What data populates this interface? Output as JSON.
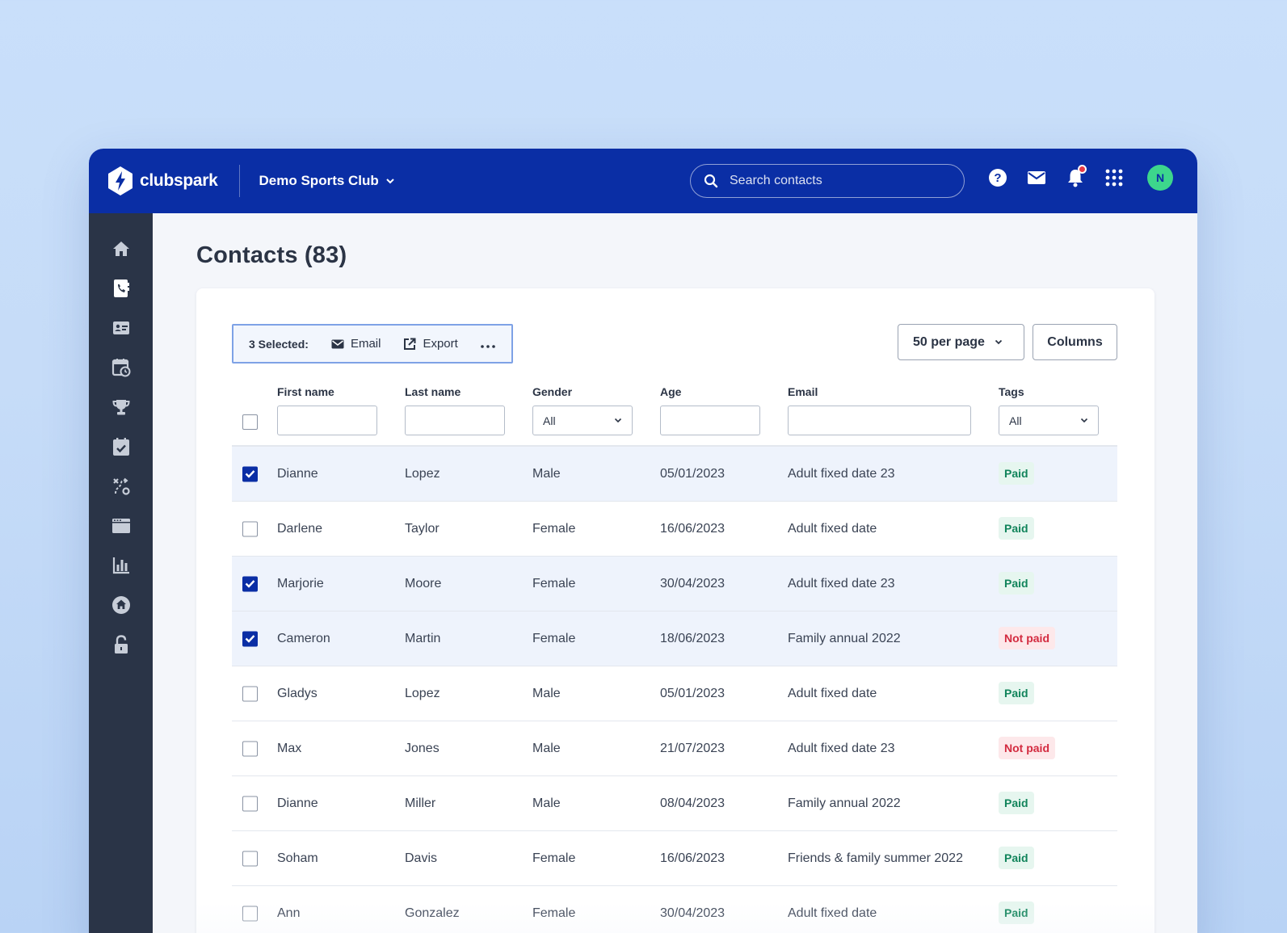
{
  "app": {
    "logo_text": "clubspark",
    "club_name": "Demo Sports Club"
  },
  "search": {
    "placeholder": "Search contacts"
  },
  "user": {
    "avatar_initial": "N"
  },
  "sidebar": {
    "items": [
      {
        "icon": "home-icon"
      },
      {
        "icon": "contacts-icon"
      },
      {
        "icon": "membership-card-icon"
      },
      {
        "icon": "calendar-clock-icon"
      },
      {
        "icon": "trophy-icon"
      },
      {
        "icon": "calendar-check-icon"
      },
      {
        "icon": "coaching-icon"
      },
      {
        "icon": "venue-icon"
      },
      {
        "icon": "reports-icon"
      },
      {
        "icon": "club-home-icon"
      },
      {
        "icon": "lock-icon"
      }
    ]
  },
  "page": {
    "title": "Contacts (83)"
  },
  "selection": {
    "count_label": "3 Selected:",
    "email_label": "Email",
    "export_label": "Export"
  },
  "toolbar": {
    "per_page_label": "50 per page",
    "columns_label": "Columns"
  },
  "table": {
    "headers": {
      "first_name": "First name",
      "last_name": "Last name",
      "gender": "Gender",
      "age": "Age",
      "email": "Email",
      "tags": "Tags"
    },
    "filters": {
      "gender": "All",
      "tags": "All"
    },
    "rows": [
      {
        "selected": true,
        "first": "Dianne",
        "last": "Lopez",
        "gender": "Male",
        "age": "05/01/2023",
        "email": "Adult fixed date 23",
        "tag": "Paid",
        "tag_status": "paid"
      },
      {
        "selected": false,
        "first": "Darlene",
        "last": "Taylor",
        "gender": "Female",
        "age": "16/06/2023",
        "email": "Adult fixed date",
        "tag": "Paid",
        "tag_status": "paid"
      },
      {
        "selected": true,
        "first": "Marjorie",
        "last": "Moore",
        "gender": "Female",
        "age": "30/04/2023",
        "email": "Adult fixed date 23",
        "tag": "Paid",
        "tag_status": "paid"
      },
      {
        "selected": true,
        "first": "Cameron",
        "last": "Martin",
        "gender": "Female",
        "age": "18/06/2023",
        "email": "Family annual 2022",
        "tag": "Not paid",
        "tag_status": "notpaid"
      },
      {
        "selected": false,
        "first": "Gladys",
        "last": "Lopez",
        "gender": "Male",
        "age": "05/01/2023",
        "email": "Adult fixed date",
        "tag": "Paid",
        "tag_status": "paid"
      },
      {
        "selected": false,
        "first": "Max",
        "last": "Jones",
        "gender": "Male",
        "age": "21/07/2023",
        "email": "Adult fixed date 23",
        "tag": "Not paid",
        "tag_status": "notpaid"
      },
      {
        "selected": false,
        "first": "Dianne",
        "last": "Miller",
        "gender": "Male",
        "age": "08/04/2023",
        "email": "Family annual 2022",
        "tag": "Paid",
        "tag_status": "paid"
      },
      {
        "selected": false,
        "first": "Soham",
        "last": "Davis",
        "gender": "Female",
        "age": "16/06/2023",
        "email": "Friends & family summer 2022",
        "tag": "Paid",
        "tag_status": "paid"
      },
      {
        "selected": false,
        "first": "Ann",
        "last": "Gonzalez",
        "gender": "Female",
        "age": "30/04/2023",
        "email": "Adult fixed date",
        "tag": "Paid",
        "tag_status": "paid"
      }
    ]
  },
  "colors": {
    "brand": "#0a2ea5",
    "sidebar": "#2a3447",
    "paid": "#11845b",
    "not_paid": "#d32a3f",
    "avatar": "#3dd68c"
  }
}
